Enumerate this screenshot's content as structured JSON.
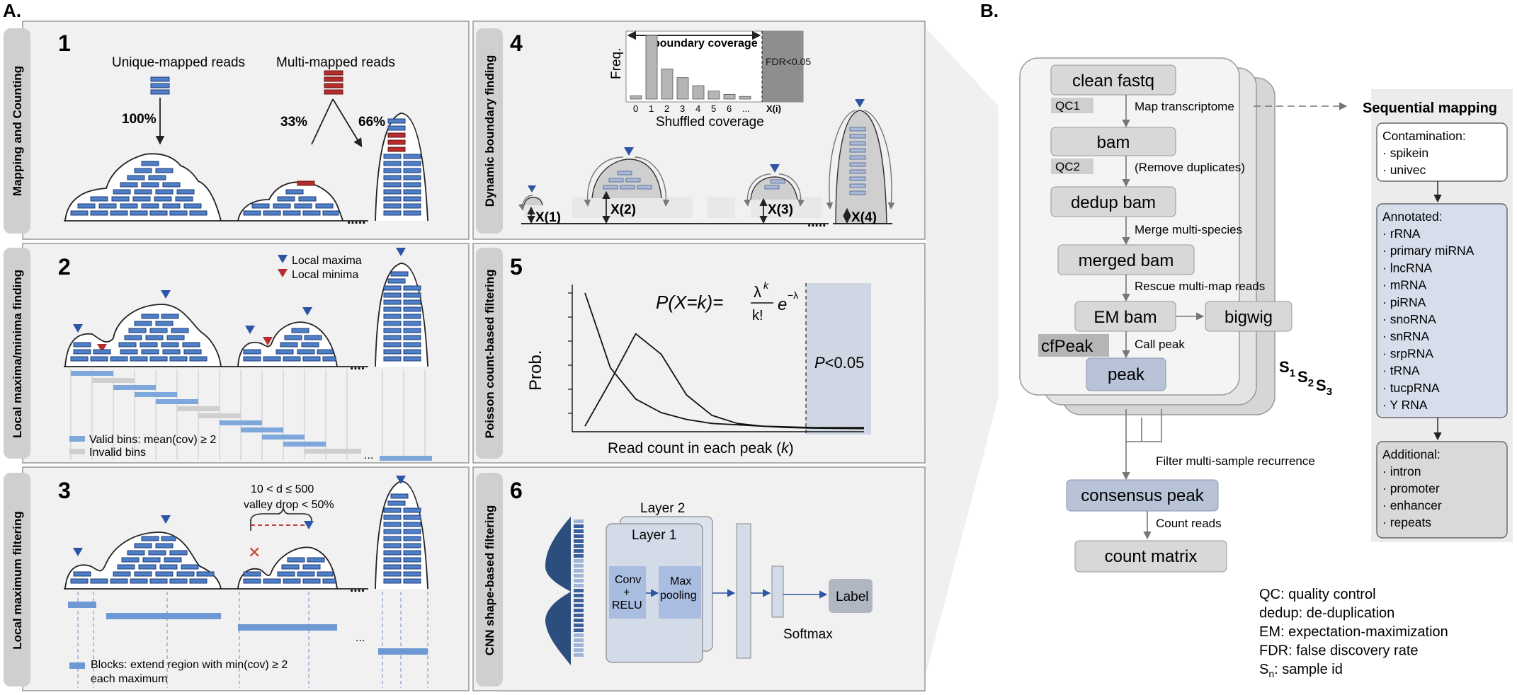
{
  "labels": {
    "panel_a": "A.",
    "panel_b": "B."
  },
  "steps": [
    {
      "num": "1",
      "side": "Mapping and Counting"
    },
    {
      "num": "2",
      "side": "Local maxima/minima finding"
    },
    {
      "num": "3",
      "side": "Local maximum filtering"
    },
    {
      "num": "4",
      "side": "Dynamic boundary finding"
    },
    {
      "num": "5",
      "side": "Poisson count-based filtering"
    },
    {
      "num": "6",
      "side": "CNN shape-based filtering"
    }
  ],
  "step1": {
    "unique": "Unique-mapped reads",
    "multi": "Multi-mapped reads",
    "pct_100": "100%",
    "pct_33": "33%",
    "pct_66": "66%",
    "dots": "....."
  },
  "step2": {
    "local_maxima": "Local maxima",
    "local_minima": "Local minima",
    "valid_bins": "Valid bins: mean(cov) ≥ 2",
    "invalid_bins": "Invalid bins",
    "dots": "...."
  },
  "step3": {
    "cond1": "10 < d ≤ 500",
    "cond2": "valley drop < 50%",
    "blocks_1": "Blocks: extend region with min(cov) ≥ 2",
    "blocks_2": "each maximum",
    "dots": "...",
    "x_mark": "✕"
  },
  "step4": {
    "boundary_coverage": "boundary coverage",
    "freq": "Freq.",
    "fdr": "FDR<0.05",
    "shuffled": "Shuffled coverage",
    "ticks": [
      "0",
      "1",
      "2",
      "3",
      "4",
      "5",
      "6",
      "...",
      "X(i)"
    ],
    "x1": "X(1)",
    "x2": "X(2)",
    "x3": "X(3)",
    "x4": "X(4)",
    "dots": "....."
  },
  "step5": {
    "formula_left": "P(X=k)=",
    "formula_num": "λ",
    "formula_num_sup": "k",
    "formula_den": "k!",
    "formula_e": "e",
    "formula_e_sup": "−λ",
    "prob": "Prob.",
    "pval": "P<0.05",
    "xlabel": "Read count in each peak (k)"
  },
  "step6": {
    "layer2": "Layer 2",
    "layer1": "Layer 1",
    "conv": [
      "Conv",
      "+",
      "RELU"
    ],
    "maxpool": [
      "Max",
      "pooling"
    ],
    "softmax": "Softmax",
    "label": "Label"
  },
  "flow": {
    "clean_fastq": "clean fastq",
    "qc1": "QC1",
    "map_transcriptome": "Map transcriptome",
    "bam": "bam",
    "qc2": "QC2",
    "remove_dup": "(Remove duplicates)",
    "dedup_bam": "dedup bam",
    "merge_multi": "Merge multi-species",
    "merged_bam": "merged bam",
    "rescue": "Rescue multi-map reads",
    "em_bam": "EM bam",
    "bigwig": "bigwig",
    "cfpeak": "cfPeak",
    "call_peak": "Call peak",
    "peak": "peak",
    "s1": "S",
    "s1_sub": "1",
    "s2": "S",
    "s2_sub": "2",
    "s3": "S",
    "s3_sub": "3",
    "filter": "Filter multi-sample recurrence",
    "consensus": "consensus peak",
    "count_reads": "Count reads",
    "count_matrix": "count matrix"
  },
  "mapping": {
    "title": "Sequential mapping",
    "contamination_title": "Contamination:",
    "contamination": [
      "· spikein",
      "· univec"
    ],
    "annotated_title": "Annotated:",
    "annotated": [
      "· rRNA",
      "· primary miRNA",
      "· lncRNA",
      "· mRNA",
      "· piRNA",
      "· snoRNA",
      "· snRNA",
      "· srpRNA",
      "· tRNA",
      "· tucpRNA",
      "· Y RNA"
    ],
    "additional_title": "Additional:",
    "additional": [
      "· intron",
      "· promoter",
      "· enhancer",
      "· repeats"
    ]
  },
  "legend": [
    "QC: quality control",
    "dedup: de-duplication",
    "EM: expectation-maximization",
    "FDR: false discovery rate"
  ],
  "legend_sn": {
    "s": "S",
    "sub": "n",
    "rest": ": sample id"
  },
  "chart_data": [
    {
      "type": "bar",
      "categories": [
        "0",
        "1",
        "2",
        "3",
        "4",
        "5",
        "6",
        "...",
        "X(i)"
      ],
      "values": [
        5,
        95,
        45,
        32,
        20,
        12,
        7,
        4,
        0
      ],
      "xlabel": "Shuffled coverage",
      "ylabel": "Freq."
    },
    {
      "type": "line",
      "xlabel": "Read count in each peak (k)",
      "ylabel": "Prob.",
      "series": [
        {
          "values": [
            100,
            45,
            22,
            12,
            7,
            4,
            3,
            2,
            1.5,
            1,
            1,
            1
          ]
        },
        {
          "values": [
            2,
            35,
            70,
            55,
            25,
            10,
            4,
            2,
            1,
            0.5,
            0.3,
            0.2
          ]
        }
      ]
    }
  ],
  "colors": {
    "read_blue": "#4f7fc6",
    "read_red": "#b52d2d",
    "panel_bg": "#f1f1f1",
    "box_grey": "#d8d8d8",
    "box_blue": "#b8c3d8",
    "maxima": "#2d55a6",
    "minima": "#b52d2d"
  }
}
